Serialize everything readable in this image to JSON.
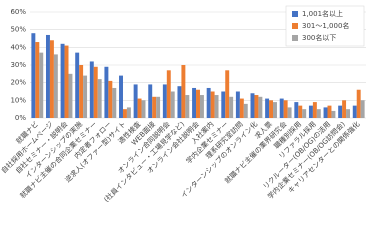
{
  "chart_data": {
    "type": "bar",
    "categories": [
      "就職ナビ",
      "自社採用ホームページ",
      "自社セミナー・説明会",
      "インターンシップの実施",
      "就職ナビ主催の合同企業セミナー",
      "内定者フォロー",
      "逆求人(オファー型)サイト",
      "適性検査",
      "WEB面接",
      "オンライン合同説明会",
      "(社員インタビュー・工場見学など)",
      "オンライン会社説明会",
      "入社案内",
      "学内企業セミナー",
      "理系研究室訪問",
      "インターンシップのオンライン化",
      "求人票",
      "就職ナビ主催の業界研究会",
      "職種別採用",
      "リファラル採用",
      "リクルーター(OB/OG)の活用",
      "学内企業セミナー(OB/OG訪問会)",
      "キャリアセンターとの関係強化"
    ],
    "series": [
      {
        "name": "1,001名以上",
        "color": "#4472c4",
        "values": [
          48,
          47,
          42,
          37,
          32,
          29,
          24,
          19,
          19,
          19,
          18,
          17,
          17,
          15,
          15,
          14,
          11,
          11,
          9,
          7,
          6,
          7,
          7
        ]
      },
      {
        "name": "301～1,000名",
        "color": "#ed7d31",
        "values": [
          43,
          44,
          41,
          30,
          29,
          21,
          5,
          11,
          12,
          27,
          30,
          16,
          15,
          27,
          11,
          13,
          10,
          10,
          7,
          9,
          7,
          10,
          16
        ]
      },
      {
        "name": "300名以下",
        "color": "#a5a5a5",
        "values": [
          37,
          36,
          25,
          24,
          22,
          17,
          6,
          10,
          12,
          15,
          13,
          13,
          13,
          12,
          8,
          12,
          9,
          6,
          5,
          5,
          4,
          5,
          10
        ]
      }
    ],
    "ylim": [
      0,
      60
    ],
    "yticks": [
      {
        "value": 0,
        "label": "0%"
      },
      {
        "value": 10,
        "label": "10%"
      },
      {
        "value": 20,
        "label": "20%"
      },
      {
        "value": 30,
        "label": "30%"
      },
      {
        "value": 40,
        "label": "40%"
      },
      {
        "value": 50,
        "label": "50%"
      },
      {
        "value": 60,
        "label": "60%"
      }
    ],
    "grid": true,
    "legend": "top-right"
  }
}
